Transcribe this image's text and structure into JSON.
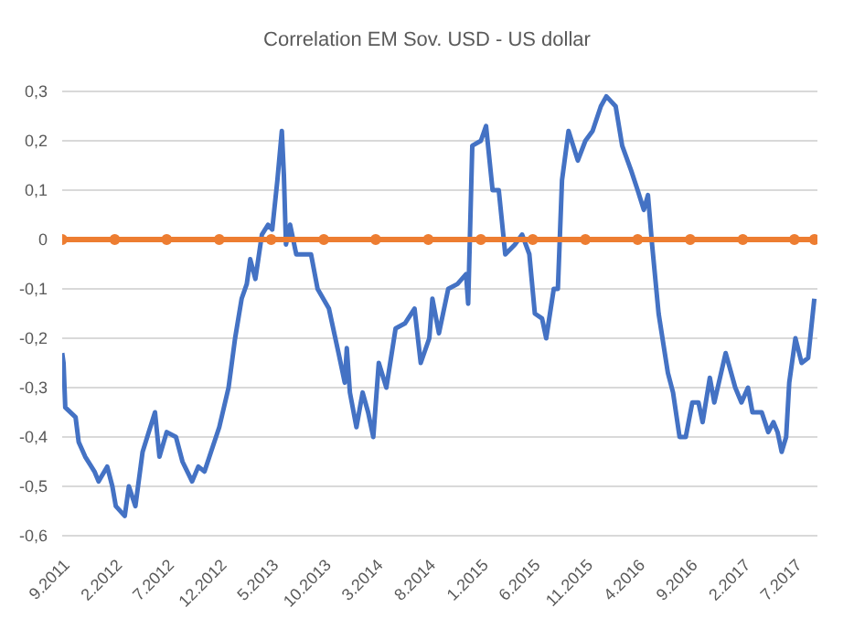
{
  "chart_data": {
    "type": "line",
    "title": "Correlation EM Sov. USD - US dollar",
    "xlim": [
      "2011-09-01",
      "2017-09-06"
    ],
    "xticks": [
      {
        "value": "2011-09-01",
        "label": "9.2011"
      },
      {
        "value": "2012-02-01",
        "label": "2.2012"
      },
      {
        "value": "2012-07-01",
        "label": "7.2012"
      },
      {
        "value": "2012-12-01",
        "label": "12.2012"
      },
      {
        "value": "2013-05-01",
        "label": "5.2013"
      },
      {
        "value": "2013-10-01",
        "label": "10.2013"
      },
      {
        "value": "2014-03-01",
        "label": "3.2014"
      },
      {
        "value": "2014-08-01",
        "label": "8.2014"
      },
      {
        "value": "2015-01-01",
        "label": "1.2015"
      },
      {
        "value": "2015-06-01",
        "label": "6.2015"
      },
      {
        "value": "2015-11-01",
        "label": "11.2015"
      },
      {
        "value": "2016-04-01",
        "label": "4.2016"
      },
      {
        "value": "2016-09-01",
        "label": "9.2016"
      },
      {
        "value": "2017-02-01",
        "label": "2.2017"
      },
      {
        "value": "2017-07-01",
        "label": "7.2017"
      }
    ],
    "ylim": [
      -0.6,
      0.3
    ],
    "yticks": [
      {
        "value": -0.6,
        "label": "-0,6"
      },
      {
        "value": -0.5,
        "label": "-0,5"
      },
      {
        "value": -0.4,
        "label": "-0,4"
      },
      {
        "value": -0.3,
        "label": "-0,3"
      },
      {
        "value": -0.2,
        "label": "-0,2"
      },
      {
        "value": -0.1,
        "label": "-0,1"
      },
      0,
      {
        "value": 0.1,
        "label": "0,1"
      },
      {
        "value": 0.2,
        "label": "0,2"
      },
      {
        "value": 0.3,
        "label": "0,3"
      }
    ],
    "grid": "y",
    "legend": false,
    "line_style": "solid",
    "series": [
      {
        "color": "#4472c4",
        "marker": "none",
        "x": [
          "2011-09-01",
          "2011-09-05",
          "2011-09-10",
          "2011-10-10",
          "2011-10-19",
          "2011-11-07",
          "2011-12-04",
          "2011-12-16",
          "2012-01-10",
          "2012-01-25",
          "2012-02-04",
          "2012-03-01",
          "2012-03-13",
          "2012-04-01",
          "2012-04-22",
          "2012-05-10",
          "2012-05-28",
          "2012-06-10",
          "2012-07-01",
          "2012-07-28",
          "2012-08-16",
          "2012-09-13",
          "2012-10-01",
          "2012-10-19",
          "2012-11-07",
          "2012-12-01",
          "2012-12-28",
          "2013-01-16",
          "2013-02-04",
          "2013-02-19",
          "2013-03-01",
          "2013-03-16",
          "2013-04-04",
          "2013-04-22",
          "2013-05-04",
          "2013-05-19",
          "2013-06-01",
          "2013-06-07",
          "2013-06-13",
          "2013-06-25",
          "2013-07-13",
          "2013-08-25",
          "2013-09-13",
          "2013-10-16",
          "2013-11-13",
          "2013-12-01",
          "2013-12-07",
          "2013-12-16",
          "2014-01-04",
          "2014-01-22",
          "2014-02-07",
          "2014-02-22",
          "2014-03-10",
          "2014-04-01",
          "2014-04-28",
          "2014-05-25",
          "2014-06-22",
          "2014-07-10",
          "2014-08-04",
          "2014-08-13",
          "2014-09-01",
          "2014-09-28",
          "2014-10-25",
          "2014-11-19",
          "2014-11-25",
          "2014-12-07",
          "2015-01-01",
          "2015-01-16",
          "2015-02-04",
          "2015-02-22",
          "2015-03-13",
          "2015-04-10",
          "2015-05-01",
          "2015-05-22",
          "2015-06-07",
          "2015-06-28",
          "2015-07-10",
          "2015-08-01",
          "2015-08-13",
          "2015-08-25",
          "2015-09-13",
          "2015-10-10",
          "2015-11-01",
          "2015-11-22",
          "2015-12-16",
          "2016-01-01",
          "2016-01-28",
          "2016-02-16",
          "2016-03-13",
          "2016-04-01",
          "2016-04-19",
          "2016-05-01",
          "2016-05-13",
          "2016-06-01",
          "2016-06-28",
          "2016-07-13",
          "2016-08-01",
          "2016-08-19",
          "2016-09-07",
          "2016-09-25",
          "2016-10-07",
          "2016-10-28",
          "2016-11-10",
          "2016-12-13",
          "2017-01-10",
          "2017-01-28",
          "2017-02-16",
          "2017-03-01",
          "2017-03-28",
          "2017-04-16",
          "2017-05-01",
          "2017-05-13",
          "2017-05-25",
          "2017-06-07",
          "2017-06-16",
          "2017-07-04",
          "2017-07-22",
          "2017-08-10",
          "2017-08-28"
        ],
        "values": [
          -0.23,
          -0.25,
          -0.34,
          -0.36,
          -0.41,
          -0.44,
          -0.47,
          -0.49,
          -0.46,
          -0.5,
          -0.54,
          -0.56,
          -0.5,
          -0.54,
          -0.43,
          -0.39,
          -0.35,
          -0.44,
          -0.39,
          -0.4,
          -0.45,
          -0.49,
          -0.46,
          -0.47,
          -0.43,
          -0.38,
          -0.3,
          -0.2,
          -0.12,
          -0.09,
          -0.04,
          -0.08,
          0.01,
          0.03,
          0.02,
          0.12,
          0.22,
          0.13,
          -0.01,
          0.03,
          -0.03,
          -0.03,
          -0.1,
          -0.14,
          -0.23,
          -0.29,
          -0.22,
          -0.31,
          -0.38,
          -0.31,
          -0.35,
          -0.4,
          -0.25,
          -0.3,
          -0.18,
          -0.17,
          -0.14,
          -0.25,
          -0.2,
          -0.12,
          -0.19,
          -0.1,
          -0.09,
          -0.07,
          -0.13,
          0.19,
          0.2,
          0.23,
          0.1,
          0.1,
          -0.03,
          -0.01,
          0.01,
          -0.03,
          -0.15,
          -0.16,
          -0.2,
          -0.1,
          -0.1,
          0.12,
          0.22,
          0.16,
          0.2,
          0.22,
          0.27,
          0.29,
          0.27,
          0.19,
          0.14,
          0.1,
          0.06,
          0.09,
          -0.01,
          -0.15,
          -0.27,
          -0.31,
          -0.4,
          -0.4,
          -0.33,
          -0.33,
          -0.37,
          -0.28,
          -0.33,
          -0.23,
          -0.3,
          -0.33,
          -0.3,
          -0.35,
          -0.35,
          -0.39,
          -0.37,
          -0.39,
          -0.43,
          -0.4,
          -0.29,
          -0.2,
          -0.25,
          -0.24,
          -0.12
        ]
      },
      {
        "color": "#ed7d31",
        "marker": "circle",
        "x": [
          "2011-09-01",
          "2012-02-01",
          "2012-07-01",
          "2012-12-01",
          "2013-05-01",
          "2013-10-01",
          "2014-03-01",
          "2014-08-01",
          "2015-01-01",
          "2015-06-01",
          "2015-11-01",
          "2016-04-01",
          "2016-09-01",
          "2017-02-01",
          "2017-07-01",
          "2017-08-28"
        ],
        "values": [
          0,
          0,
          0,
          0,
          0,
          0,
          0,
          0,
          0,
          0,
          0,
          0,
          0,
          0,
          0,
          0
        ]
      }
    ]
  }
}
